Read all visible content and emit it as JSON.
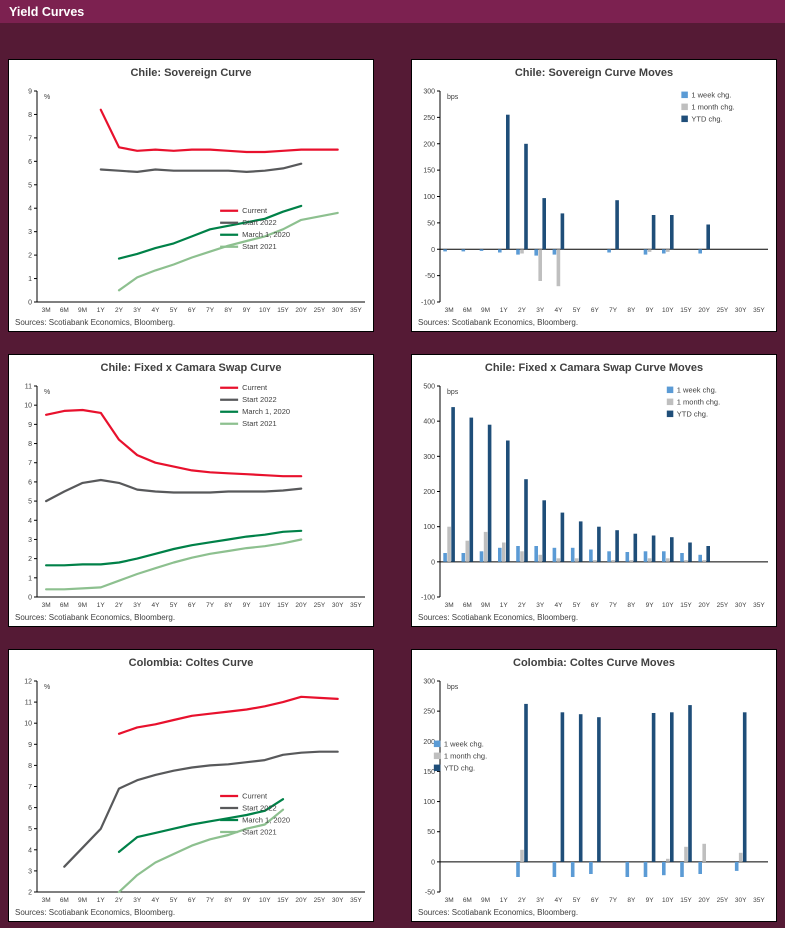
{
  "header": {
    "title": "Yield Curves"
  },
  "colors": {
    "page_bg": "#551a35",
    "header_bg": "#7c2150",
    "panel_bg": "#ffffff",
    "text": "#404040",
    "axis": "#000000",
    "current_red": "#e8112d",
    "start2022_gray": "#58595b",
    "march2020_green": "#008148",
    "start2021_green": "#8dc08f",
    "week_blue": "#5b9bd5",
    "month_gray": "#bfbfbf",
    "ytd_navy": "#1f4e79"
  },
  "chart_data": [
    {
      "type": "line",
      "title": "Chile:  Sovereign Curve",
      "unit_label": "%",
      "ylim": [
        0,
        9
      ],
      "ystep": 1,
      "grid": false,
      "legend": {
        "x": 0.58,
        "y": 0.52,
        "marker": "line"
      },
      "categories": [
        "3M",
        "6M",
        "9M",
        "1Y",
        "2Y",
        "3Y",
        "4Y",
        "5Y",
        "6Y",
        "7Y",
        "8Y",
        "9Y",
        "10Y",
        "15Y",
        "20Y",
        "25Y",
        "30Y",
        "35Y"
      ],
      "series": [
        {
          "name": "Current",
          "color": "#e8112d",
          "values": [
            null,
            null,
            null,
            8.2,
            6.6,
            6.45,
            6.5,
            6.45,
            6.5,
            6.5,
            6.45,
            6.4,
            6.4,
            6.45,
            6.5,
            6.5,
            6.5,
            null
          ]
        },
        {
          "name": "Start 2022",
          "color": "#58595b",
          "values": [
            null,
            null,
            null,
            5.65,
            5.6,
            5.55,
            5.65,
            5.6,
            5.6,
            5.6,
            5.6,
            5.55,
            5.6,
            5.7,
            5.9,
            null,
            null,
            null
          ]
        },
        {
          "name": "March 1, 2020",
          "color": "#008148",
          "values": [
            null,
            null,
            null,
            null,
            1.85,
            2.05,
            2.3,
            2.5,
            2.8,
            3.1,
            3.25,
            3.4,
            3.55,
            3.85,
            4.1,
            null,
            null,
            null
          ]
        },
        {
          "name": "Start 2021",
          "color": "#8dc08f",
          "values": [
            null,
            null,
            null,
            null,
            0.5,
            1.05,
            1.35,
            1.6,
            1.9,
            2.15,
            2.4,
            2.6,
            2.8,
            3.1,
            3.5,
            3.65,
            3.8,
            null
          ]
        }
      ],
      "source": "Sources: Scotiabank Economics, Bloomberg."
    },
    {
      "type": "bar",
      "title": "Chile:  Sovereign Curve Moves",
      "unit_label": "bps",
      "ylim": [
        -100,
        300
      ],
      "ystep": 50,
      "grid": false,
      "legend": {
        "x": 0.74,
        "y": 0.03,
        "marker": "square"
      },
      "categories": [
        "3M",
        "6M",
        "9M",
        "1Y",
        "2Y",
        "3Y",
        "4Y",
        "5Y",
        "6Y",
        "7Y",
        "8Y",
        "9Y",
        "10Y",
        "15Y",
        "20Y",
        "25Y",
        "30Y",
        "35Y"
      ],
      "series": [
        {
          "name": "1 week chg.",
          "color": "#5b9bd5",
          "values": [
            -4,
            -4,
            -3,
            -6,
            -10,
            -12,
            -10,
            0,
            0,
            -6,
            0,
            -10,
            -8,
            0,
            -8,
            0,
            0,
            0
          ]
        },
        {
          "name": "1 month chg.",
          "color": "#bfbfbf",
          "values": [
            0,
            0,
            0,
            0,
            -8,
            -60,
            -70,
            0,
            0,
            0,
            0,
            -5,
            -5,
            0,
            0,
            0,
            0,
            0
          ]
        },
        {
          "name": "YTD chg.",
          "color": "#1f4e79",
          "values": [
            0,
            0,
            0,
            255,
            200,
            97,
            68,
            0,
            0,
            93,
            0,
            65,
            65,
            0,
            47,
            0,
            0,
            0
          ]
        }
      ],
      "source": "Sources: Scotiabank Economics, Bloomberg."
    },
    {
      "type": "line",
      "title": "Chile: Fixed x Camara Swap Curve",
      "unit_label": "%",
      "ylim": [
        0,
        11
      ],
      "ystep": 1,
      "grid": false,
      "legend": {
        "x": 0.58,
        "y": 0.02,
        "marker": "line"
      },
      "categories": [
        "3M",
        "6M",
        "9M",
        "1Y",
        "2Y",
        "3Y",
        "4Y",
        "5Y",
        "6Y",
        "7Y",
        "8Y",
        "9Y",
        "10Y",
        "15Y",
        "20Y",
        "25Y",
        "30Y",
        "35Y"
      ],
      "series": [
        {
          "name": "Current",
          "color": "#e8112d",
          "values": [
            9.5,
            9.7,
            9.75,
            9.6,
            8.2,
            7.4,
            7.0,
            6.8,
            6.6,
            6.5,
            6.45,
            6.4,
            6.35,
            6.3,
            6.3,
            null,
            null,
            null
          ]
        },
        {
          "name": "Start 2022",
          "color": "#58595b",
          "values": [
            5.0,
            5.5,
            5.95,
            6.1,
            5.95,
            5.6,
            5.5,
            5.45,
            5.45,
            5.45,
            5.5,
            5.5,
            5.5,
            5.55,
            5.65,
            null,
            null,
            null
          ]
        },
        {
          "name": "March 1, 2020",
          "color": "#008148",
          "values": [
            1.65,
            1.65,
            1.7,
            1.7,
            1.8,
            2.0,
            2.25,
            2.5,
            2.7,
            2.85,
            3.0,
            3.15,
            3.25,
            3.4,
            3.45,
            null,
            null,
            null
          ]
        },
        {
          "name": "Start 2021",
          "color": "#8dc08f",
          "values": [
            0.4,
            0.4,
            0.45,
            0.5,
            0.85,
            1.2,
            1.5,
            1.8,
            2.05,
            2.25,
            2.4,
            2.55,
            2.65,
            2.8,
            3.0,
            null,
            null,
            null
          ]
        }
      ],
      "source": "Sources: Scotiabank Economics, Bloomberg."
    },
    {
      "type": "bar",
      "title": "Chile: Fixed x Camara Swap Curve Moves",
      "unit_label": "bps",
      "ylim": [
        -100,
        500
      ],
      "ystep": 100,
      "grid": false,
      "legend": {
        "x": 0.7,
        "y": 0.03,
        "marker": "square"
      },
      "categories": [
        "3M",
        "6M",
        "9M",
        "1Y",
        "2Y",
        "3Y",
        "4Y",
        "5Y",
        "6Y",
        "7Y",
        "8Y",
        "9Y",
        "10Y",
        "15Y",
        "20Y",
        "25Y",
        "30Y",
        "35Y"
      ],
      "series": [
        {
          "name": "1 week chg.",
          "color": "#5b9bd5",
          "values": [
            25,
            25,
            30,
            40,
            45,
            45,
            40,
            40,
            35,
            30,
            28,
            30,
            30,
            25,
            20,
            0,
            0,
            0
          ]
        },
        {
          "name": "1 month chg.",
          "color": "#bfbfbf",
          "values": [
            100,
            60,
            85,
            55,
            30,
            20,
            10,
            10,
            5,
            5,
            5,
            10,
            10,
            5,
            5,
            0,
            0,
            0
          ]
        },
        {
          "name": "YTD chg.",
          "color": "#1f4e79",
          "values": [
            440,
            410,
            390,
            345,
            235,
            175,
            140,
            115,
            100,
            90,
            80,
            75,
            70,
            55,
            45,
            0,
            0,
            0
          ]
        }
      ],
      "source": "Sources: Scotiabank Economics, Bloomberg."
    },
    {
      "type": "line",
      "title": "Colombia: Coltes Curve",
      "unit_label": "%",
      "ylim": [
        2,
        12
      ],
      "ystep": 1,
      "grid": false,
      "legend": {
        "x": 0.58,
        "y": 0.5,
        "marker": "line"
      },
      "categories": [
        "3M",
        "6M",
        "9M",
        "1Y",
        "2Y",
        "3Y",
        "4Y",
        "5Y",
        "6Y",
        "7Y",
        "8Y",
        "9Y",
        "10Y",
        "15Y",
        "20Y",
        "25Y",
        "30Y",
        "35Y"
      ],
      "series": [
        {
          "name": "Current",
          "color": "#e8112d",
          "values": [
            null,
            null,
            null,
            null,
            9.5,
            9.8,
            9.95,
            10.15,
            10.35,
            10.45,
            10.55,
            10.65,
            10.8,
            11.0,
            11.25,
            11.2,
            11.15,
            null
          ]
        },
        {
          "name": "Start 2022",
          "color": "#58595b",
          "values": [
            null,
            3.2,
            4.1,
            5.0,
            6.9,
            7.3,
            7.55,
            7.75,
            7.9,
            8.0,
            8.05,
            8.15,
            8.25,
            8.5,
            8.6,
            8.65,
            8.65,
            null
          ]
        },
        {
          "name": "March 1, 2020",
          "color": "#008148",
          "values": [
            null,
            null,
            null,
            null,
            3.9,
            4.6,
            4.8,
            5.0,
            5.2,
            5.35,
            5.5,
            5.65,
            5.85,
            6.4,
            null,
            null,
            null,
            null
          ]
        },
        {
          "name": "Start 2021",
          "color": "#8dc08f",
          "values": [
            null,
            null,
            null,
            null,
            2.0,
            2.8,
            3.4,
            3.8,
            4.2,
            4.5,
            4.7,
            5.0,
            5.2,
            5.9,
            null,
            null,
            null,
            null
          ]
        }
      ],
      "source": "Sources: Scotiabank Economics, Bloomberg."
    },
    {
      "type": "bar",
      "title": "Colombia: Coltes Curve Moves",
      "unit_label": "bps",
      "ylim": [
        -50,
        300
      ],
      "ystep": 50,
      "grid": false,
      "legend": {
        "x": 0.06,
        "y": 0.28,
        "marker": "square"
      },
      "categories": [
        "3M",
        "6M",
        "9M",
        "1Y",
        "2Y",
        "3Y",
        "4Y",
        "5Y",
        "6Y",
        "7Y",
        "8Y",
        "9Y",
        "10Y",
        "15Y",
        "20Y",
        "25Y",
        "30Y",
        "35Y"
      ],
      "series": [
        {
          "name": "1 week chg.",
          "color": "#5b9bd5",
          "values": [
            0,
            0,
            0,
            0,
            -25,
            0,
            -25,
            -25,
            -20,
            0,
            -25,
            -25,
            -22,
            -25,
            -20,
            0,
            -15,
            0
          ]
        },
        {
          "name": "1 month chg.",
          "color": "#bfbfbf",
          "values": [
            0,
            0,
            0,
            0,
            20,
            0,
            0,
            0,
            0,
            0,
            0,
            0,
            5,
            25,
            30,
            0,
            15,
            0
          ]
        },
        {
          "name": "YTD chg.",
          "color": "#1f4e79",
          "values": [
            0,
            0,
            0,
            0,
            262,
            0,
            248,
            245,
            240,
            0,
            0,
            247,
            248,
            260,
            0,
            0,
            248,
            0
          ]
        }
      ],
      "source": "Sources: Scotiabank Economics, Bloomberg."
    }
  ]
}
